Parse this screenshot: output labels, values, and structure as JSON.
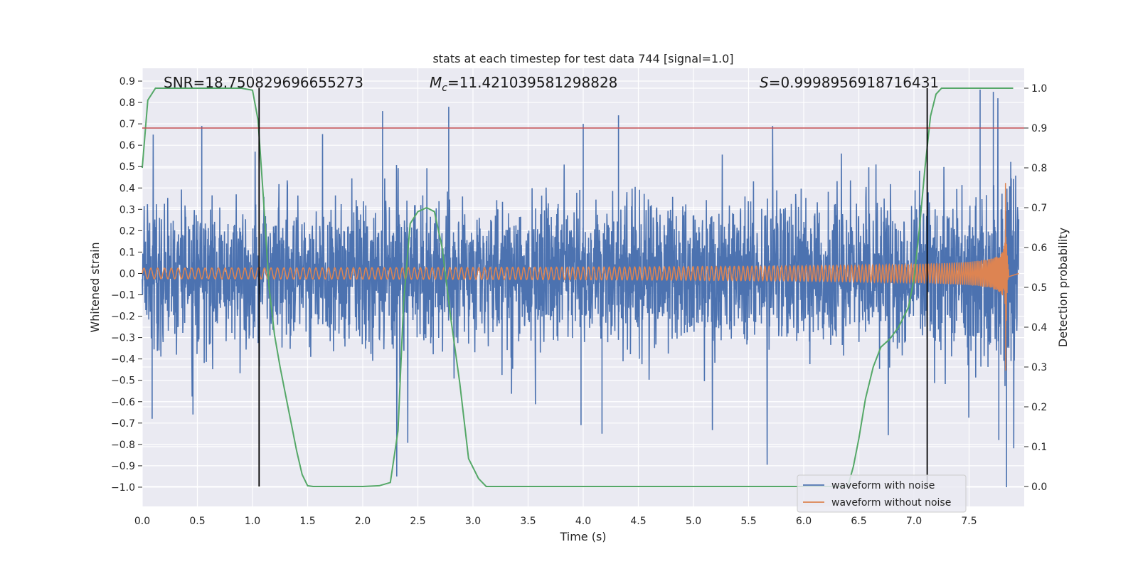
{
  "chart_data": {
    "type": "line",
    "title": "stats at each timestep for test data 744 [signal=1.0]",
    "xlabel": "Time (s)",
    "ylabel": "Whitened strain",
    "y2label": "Detection probability",
    "xlim": [
      0.0,
      8.0
    ],
    "ylim": [
      -1.09,
      0.96
    ],
    "y2lim": [
      -0.05,
      1.05
    ],
    "x_ticks": [
      "0.0",
      "0.5",
      "1.0",
      "1.5",
      "2.0",
      "2.5",
      "3.0",
      "3.5",
      "4.0",
      "4.5",
      "5.0",
      "5.5",
      "6.0",
      "6.5",
      "7.0",
      "7.5"
    ],
    "y_ticks": [
      "0.9",
      "0.8",
      "0.7",
      "0.6",
      "0.5",
      "0.4",
      "0.3",
      "0.2",
      "0.1",
      "0.0",
      "−0.1",
      "−0.2",
      "−0.3",
      "−0.4",
      "−0.5",
      "−0.6",
      "−0.7",
      "−0.8",
      "−0.9",
      "−1.0"
    ],
    "y2_ticks": [
      "1.0",
      "0.9",
      "0.8",
      "0.7",
      "0.6",
      "0.5",
      "0.4",
      "0.3",
      "0.2",
      "0.1",
      "0.0"
    ],
    "grid": true,
    "legend_position": "lower-right",
    "annotations": {
      "snr": "SNR=18.750829696655273",
      "mc_symbol": "M",
      "mc_sub": "c",
      "mc_value": "=11.421039581298828",
      "s_symbol": "S",
      "s_value": "=0.9998956918716431"
    },
    "threshold_line": {
      "axis": "right",
      "y": 0.9,
      "color": "#c44e52"
    },
    "vertical_lines": [
      {
        "x": 1.06,
        "color": "#000000"
      },
      {
        "x": 7.12,
        "color": "#000000"
      }
    ],
    "series": [
      {
        "name": "waveform with noise",
        "axis": "left",
        "color": "#4c72b0",
        "kind": "noise",
        "x_range": [
          0.0,
          8.0
        ],
        "approx_envelope": [
          -0.5,
          0.5
        ],
        "notable_peaks": [
          {
            "x": 0.54,
            "y": 0.69
          },
          {
            "x": 2.18,
            "y": 0.76
          },
          {
            "x": 2.78,
            "y": 0.78
          },
          {
            "x": 4.0,
            "y": 0.7
          },
          {
            "x": 4.32,
            "y": 0.74
          },
          {
            "x": 7.6,
            "y": 0.86
          },
          {
            "x": 7.72,
            "y": 0.85
          },
          {
            "x": 0.09,
            "y": -0.68
          },
          {
            "x": 0.46,
            "y": -0.66
          },
          {
            "x": 4.17,
            "y": -0.75
          },
          {
            "x": 3.98,
            "y": -0.71
          },
          {
            "x": 7.84,
            "y": -1.0
          },
          {
            "x": 7.77,
            "y": -0.78
          }
        ]
      },
      {
        "name": "waveform without noise",
        "axis": "left",
        "color": "#dd8452",
        "kind": "chirp",
        "x_range": [
          0.0,
          7.86
        ],
        "amplitude_start": 0.025,
        "amplitude_peak": 0.62,
        "merger_time": 7.83
      },
      {
        "name": "",
        "axis": "right",
        "color": "#55a868",
        "kind": "line",
        "x": [
          0.0,
          0.05,
          0.12,
          0.2,
          0.3,
          0.5,
          0.7,
          0.9,
          1.0,
          1.05,
          1.1,
          1.15,
          1.2,
          1.25,
          1.3,
          1.35,
          1.4,
          1.45,
          1.5,
          1.55,
          1.7,
          2.0,
          2.15,
          2.25,
          2.32,
          2.37,
          2.43,
          2.5,
          2.58,
          2.65,
          2.72,
          2.8,
          2.88,
          2.96,
          3.05,
          3.12,
          3.5,
          5.0,
          6.4,
          6.45,
          6.5,
          6.56,
          6.63,
          6.7,
          6.78,
          6.86,
          6.95,
          7.0,
          7.05,
          7.1,
          7.15,
          7.2,
          7.25,
          7.35,
          7.5,
          7.7,
          7.9
        ],
        "y": [
          0.8,
          0.97,
          1.0,
          1.0,
          1.0,
          1.0,
          1.0,
          1.0,
          0.995,
          0.92,
          0.72,
          0.5,
          0.38,
          0.3,
          0.23,
          0.16,
          0.09,
          0.03,
          0.002,
          0.0,
          0.0,
          0.0,
          0.002,
          0.01,
          0.14,
          0.46,
          0.66,
          0.69,
          0.7,
          0.69,
          0.6,
          0.42,
          0.26,
          0.07,
          0.02,
          0.0,
          0.0,
          0.0,
          0.0,
          0.05,
          0.12,
          0.22,
          0.3,
          0.35,
          0.37,
          0.4,
          0.45,
          0.52,
          0.65,
          0.8,
          0.93,
          0.985,
          1.0,
          1.0,
          1.0,
          1.0,
          1.0
        ]
      }
    ]
  }
}
